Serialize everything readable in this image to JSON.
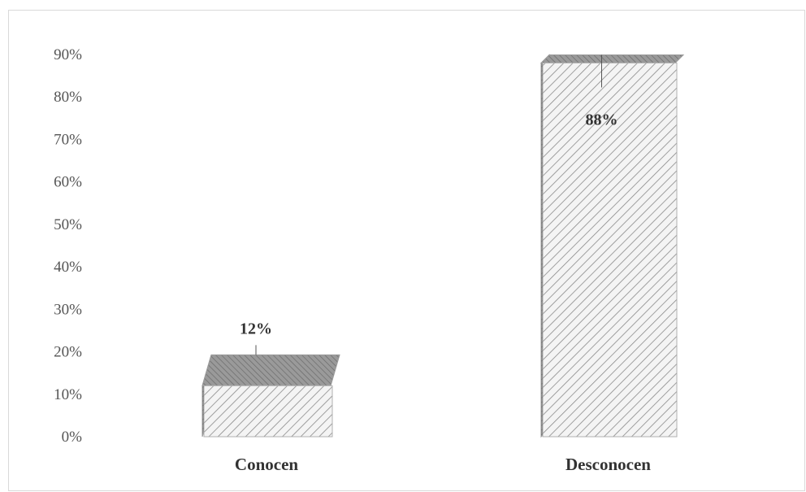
{
  "chart_data": {
    "type": "bar",
    "style": "3d-column",
    "categories": [
      "Conocen",
      "Desconocen"
    ],
    "values": [
      12,
      88
    ],
    "value_labels": [
      "12%",
      "88%"
    ],
    "title": "",
    "xlabel": "",
    "ylabel": "",
    "ylim": [
      0,
      90
    ],
    "ytick_labels": [
      "0%",
      "10%",
      "20%",
      "30%",
      "40%",
      "50%",
      "60%",
      "70%",
      "80%",
      "90%"
    ],
    "grid": false,
    "legend": "none",
    "colors": {
      "face": "#f4f4f4",
      "hatch": "#8a8a8a",
      "side": "#6e6e6e",
      "top": "#8f8f8f",
      "text": "#333333"
    }
  }
}
